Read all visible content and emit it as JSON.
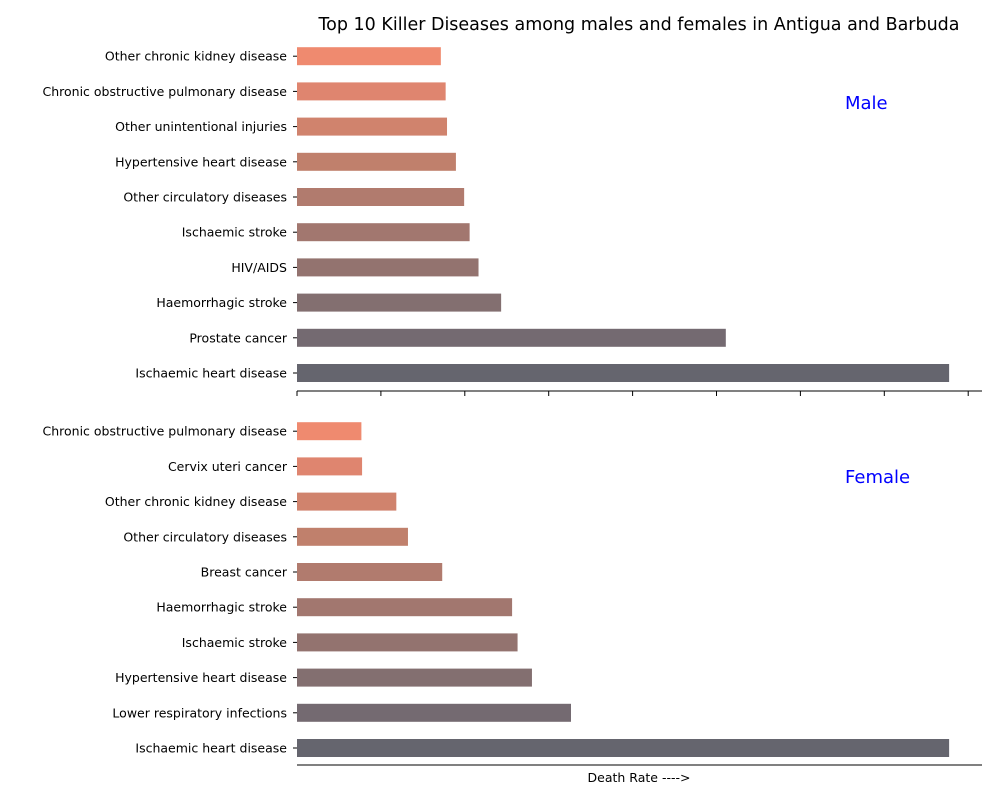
{
  "chart_data": {
    "type": "bar",
    "orientation": "horizontal",
    "title": "Top 10 Killer Diseases among males and females in Antigua and Barbuda",
    "xlabel": "Death Rate ---->",
    "xlim": [
      0,
      100
    ],
    "grid": false,
    "legend": "none",
    "panel_label_color": "#0000ff",
    "panels": [
      {
        "label": "Male",
        "categories": [
          "Ischaemic heart disease",
          "Prostate cancer",
          "Haemorrhagic stroke",
          "HIV/AIDS",
          "Ischaemic stroke",
          "Other circulatory diseases",
          "Hypertensive heart disease",
          "Other unintentional injuries",
          "Chronic obstructive pulmonary disease",
          "Other chronic kidney disease"
        ],
        "values": [
          95.2,
          62.6,
          29.8,
          26.5,
          25.2,
          24.4,
          23.2,
          21.9,
          21.7,
          21.0
        ]
      },
      {
        "label": "Female",
        "categories": [
          "Ischaemic heart disease",
          "Lower respiratory infections",
          "Hypertensive heart disease",
          "Ischaemic stroke",
          "Haemorrhagic stroke",
          "Breast cancer",
          "Other circulatory diseases",
          "Other chronic kidney disease",
          "Cervix uteri cancer",
          "Chronic obstructive pulmonary disease"
        ],
        "values": [
          95.2,
          40.0,
          34.3,
          32.2,
          31.4,
          21.2,
          16.2,
          14.5,
          9.5,
          9.4
        ]
      }
    ],
    "bar_colors": [
      "#65656e",
      "#746a71",
      "#836f70",
      "#93736f",
      "#a2776f",
      "#b17b6e",
      "#c0806c",
      "#d0836d",
      "#df856f",
      "#ef8a6f"
    ]
  }
}
